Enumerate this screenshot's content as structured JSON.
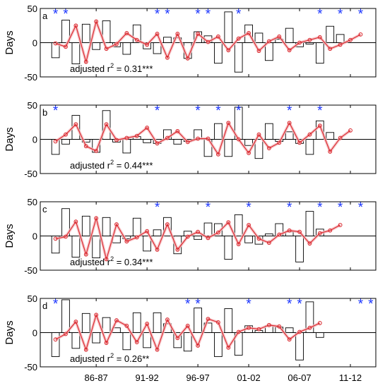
{
  "chart_data": {
    "type": "bar",
    "x_tick_labels": [
      "86-87",
      "91-92",
      "96-97",
      "01-02",
      "06-07",
      "11-12"
    ],
    "x_tick_years": [
      5,
      10,
      15,
      20,
      25,
      30
    ],
    "ylabel": "Days",
    "ylim": [
      -50,
      50
    ],
    "yticks": [
      -50,
      0,
      50
    ],
    "marker": "*",
    "panels": [
      {
        "label": "a",
        "stat_text": "adjusted r",
        "stat_exp": "2",
        "stat_value": " = 0.31***",
        "bars": [
          -22,
          33,
          -31,
          27,
          -10,
          32,
          -6,
          -17,
          26,
          -9,
          -16,
          8,
          7,
          -23,
          16,
          10,
          -30,
          45,
          -43,
          26,
          14,
          -26,
          5,
          21,
          -6,
          -2,
          -30,
          24,
          12
        ],
        "line": [
          -1,
          -6,
          25,
          -28,
          31,
          -9,
          -2,
          14,
          4,
          -3,
          13,
          -22,
          13,
          -23,
          13,
          1,
          9,
          -11,
          6,
          14,
          -12,
          2,
          9,
          -11,
          0,
          4,
          8,
          -9,
          -3,
          4,
          12
        ],
        "stars": [
          1,
          2,
          11,
          12,
          15,
          16,
          19,
          27,
          29,
          31
        ]
      },
      {
        "label": "b",
        "stat_text": "adjusted r",
        "stat_exp": "2",
        "stat_value": " = 0.44***",
        "bars": [
          -22,
          -7,
          35,
          -4,
          -19,
          42,
          -4,
          -20,
          4,
          -5,
          -6,
          14,
          -7,
          -3,
          14,
          -25,
          23,
          -25,
          47,
          -9,
          -28,
          23,
          -3,
          11,
          -6,
          -22,
          27,
          10
        ],
        "line": [
          -3,
          7,
          22,
          -10,
          -17,
          22,
          -1,
          2,
          5,
          17,
          -6,
          2,
          12,
          -4,
          1,
          1,
          -22,
          24,
          0,
          -20,
          7,
          -13,
          -5,
          24,
          -5,
          7,
          20,
          -18,
          2,
          13
        ],
        "stars": [
          1,
          11,
          15,
          17,
          19,
          24,
          27
        ]
      },
      {
        "label": "c",
        "stat_text": "adjusted r",
        "stat_exp": "2",
        "stat_value": " = 0.34***",
        "bars": [
          -25,
          40,
          -31,
          29,
          -32,
          27,
          -10,
          -4,
          26,
          -22,
          9,
          27,
          -26,
          7,
          -5,
          19,
          18,
          -34,
          31,
          -10,
          -12,
          3,
          18,
          6,
          -38,
          36,
          10
        ],
        "line": [
          -4,
          -1,
          21,
          -27,
          26,
          -34,
          17,
          -8,
          -2,
          7,
          -20,
          17,
          -20,
          -1,
          6,
          -3,
          5,
          20,
          -12,
          16,
          -4,
          -10,
          2,
          8,
          6,
          -11,
          4,
          8,
          16
        ],
        "stars": [
          11,
          16,
          20,
          24,
          27,
          29,
          31
        ]
      },
      {
        "label": "d",
        "stat_text": "adjusted r",
        "stat_exp": "2",
        "stat_value": " = 0.26**",
        "bars": [
          -35,
          48,
          -23,
          28,
          -15,
          22,
          7,
          -25,
          29,
          -22,
          29,
          13,
          -22,
          -27,
          36,
          14,
          -35,
          35,
          -33,
          10,
          3,
          10,
          8,
          7,
          -40,
          45,
          -7
        ],
        "line": [
          -10,
          -2,
          16,
          -25,
          26,
          -15,
          18,
          10,
          -14,
          13,
          -25,
          19,
          -8,
          10,
          -19,
          20,
          15,
          -22,
          1,
          7,
          5,
          11,
          9,
          -10,
          1,
          7,
          14
        ],
        "stars": [
          1,
          14,
          15,
          20,
          24,
          25,
          31,
          32
        ]
      }
    ]
  }
}
